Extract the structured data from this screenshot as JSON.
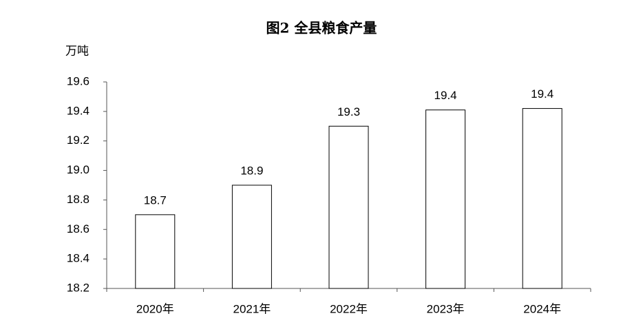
{
  "chart_data": {
    "type": "bar",
    "title": "图2  全县粮食产量",
    "y_label": "万吨",
    "categories": [
      "2020年",
      "2021年",
      "2022年",
      "2023年",
      "2024年"
    ],
    "values": [
      18.7,
      18.9,
      19.3,
      19.41,
      19.42
    ],
    "value_labels": [
      "18.7",
      "18.9",
      "19.3",
      "19.4",
      "19.4"
    ],
    "color": "#ffffff",
    "edge_color": "#000000",
    "ylim": [
      18.2,
      19.6
    ],
    "yticks": [
      18.2,
      18.4,
      18.6,
      18.8,
      {
        "value": 19,
        "label": "19.0"
      },
      19.2,
      19.4,
      19.6
    ],
    "grid": false
  }
}
